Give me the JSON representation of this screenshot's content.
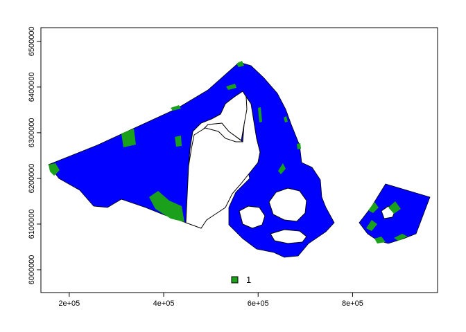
{
  "map": {
    "colors": {
      "sea_area": "#0000ff",
      "marked_zone": "#1aa01a",
      "land": "#ffffff",
      "outline": "#000000",
      "frame": "#000000"
    },
    "x_axis": {
      "ticks": [
        200000,
        400000,
        600000,
        800000
      ],
      "tick_labels": [
        "2e+05",
        "4e+05",
        "6e+05",
        "8e+05"
      ],
      "range": [
        140000,
        980000
      ]
    },
    "y_axis": {
      "ticks": [
        6000000,
        6100000,
        6200000,
        6300000,
        6400000,
        6500000
      ],
      "tick_labels": [
        "6000000",
        "6100000",
        "6200000",
        "6300000",
        "6400000",
        "6500000"
      ],
      "range": [
        5950000,
        6530000
      ]
    },
    "legend": {
      "position": "bottom-center",
      "items": [
        {
          "label": "1",
          "color": "#1aa01a"
        }
      ]
    }
  }
}
